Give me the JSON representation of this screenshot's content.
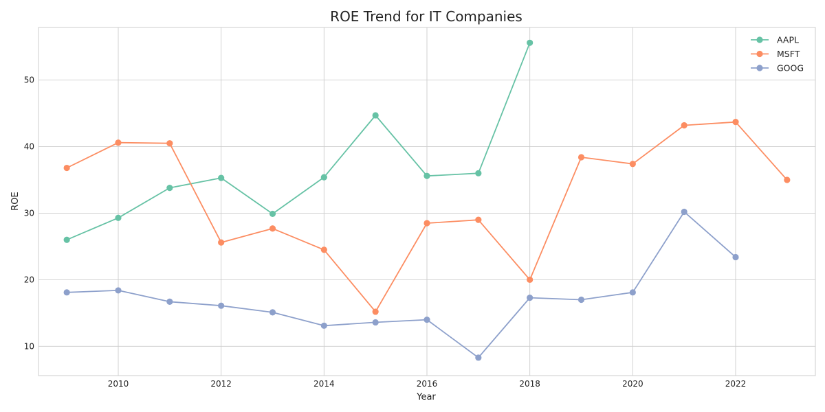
{
  "chart_data": {
    "type": "line",
    "title": "ROE Trend for IT Companies",
    "xlabel": "Year",
    "ylabel": "ROE",
    "xlim": [
      2008.45,
      2023.55
    ],
    "ylim": [
      5.6,
      57.9
    ],
    "xticks": [
      2010,
      2012,
      2014,
      2016,
      2018,
      2020,
      2022
    ],
    "yticks": [
      10,
      20,
      30,
      40,
      50
    ],
    "grid": true,
    "legend_position": "top-right",
    "series": [
      {
        "name": "AAPL",
        "color": "#66c2a5",
        "x": [
          2009,
          2010,
          2011,
          2012,
          2013,
          2014,
          2015,
          2016,
          2017,
          2018
        ],
        "y": [
          26.0,
          29.3,
          33.8,
          35.3,
          29.9,
          35.4,
          44.7,
          35.6,
          36.0,
          55.6
        ]
      },
      {
        "name": "MSFT",
        "color": "#fc8d62",
        "x": [
          2009,
          2010,
          2011,
          2012,
          2013,
          2014,
          2015,
          2016,
          2017,
          2018,
          2019,
          2020,
          2021,
          2022,
          2023
        ],
        "y": [
          36.8,
          40.6,
          40.5,
          25.6,
          27.7,
          24.5,
          15.2,
          28.5,
          29.0,
          20.0,
          38.4,
          37.4,
          43.2,
          43.7,
          35.0
        ]
      },
      {
        "name": "GOOG",
        "color": "#8da0cb",
        "x": [
          2009,
          2010,
          2011,
          2012,
          2013,
          2014,
          2015,
          2016,
          2017,
          2018,
          2019,
          2020,
          2021,
          2022
        ],
        "y": [
          18.1,
          18.4,
          16.7,
          16.1,
          15.1,
          13.1,
          13.6,
          14.0,
          8.3,
          17.3,
          17.0,
          18.1,
          30.2,
          23.4
        ]
      }
    ]
  }
}
